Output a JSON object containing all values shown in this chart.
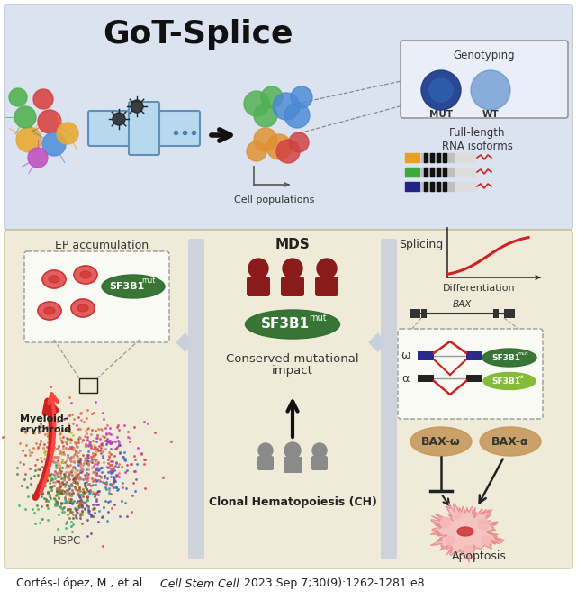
{
  "title": "GoT-Splice",
  "bg_top": "#dce3f0",
  "bg_bottom": "#f0ead8",
  "bg_page": "#ffffff",
  "citation_normal": "Cortés-López, M., et al. ",
  "citation_italic": "Cell Stem Cell",
  "citation_end": ". 2023 Sep 7;30(9):1262-1281.e8.",
  "panel_labels": {
    "ep_accum": "EP accumulation",
    "mds": "MDS",
    "splicing": "Splicing",
    "differentiation": "Differentiation",
    "myeloid1": "Myeloid-",
    "myeloid2": "erythroid",
    "hspc": "HSPC",
    "conserved1": "Conserved mutational",
    "conserved2": "impact",
    "clonal": "Clonal Hematopoiesis (CH)",
    "cell_pop": "Cell populations",
    "genotyping": "Genotyping",
    "rna_isoforms": "Full-length\nRNA isoforms",
    "mut": "MUT",
    "wt": "WT",
    "bax": "BAX",
    "bax_omega": "BAX-ω",
    "bax_alpha": "BAX-α",
    "apoptosis": "Apoptosis",
    "omega": "ω",
    "alpha": "α"
  },
  "colors": {
    "bg_top": "#dce3f0",
    "bg_bottom": "#f0ead8",
    "dark_red_person": "#8B1A1A",
    "green_oval_dark": "#2d6e2d",
    "green_oval_light": "#7fb832",
    "gray_person": "#8a8a8a",
    "tan_oval": "#c4975a",
    "pink_apoptosis": "#f5b8b8",
    "red_arrow": "#cc2222",
    "navy_exon": "#2a2a8a",
    "black_exon": "#222222",
    "divider_gray": "#b0b8c8",
    "chevron_gray": "#b0b8c8"
  },
  "figsize": [
    6.41,
    6.76
  ],
  "dpi": 100
}
